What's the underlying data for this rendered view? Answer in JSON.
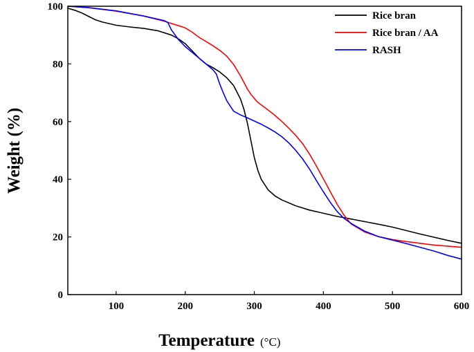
{
  "chart_data": {
    "type": "line",
    "title": "",
    "xlabel": "Temperature",
    "xlabel_unit": "(°C)",
    "ylabel": "Weight (%)",
    "xlim": [
      30,
      600
    ],
    "ylim": [
      0,
      100
    ],
    "xticks": [
      100,
      200,
      300,
      400,
      500,
      600
    ],
    "yticks": [
      0,
      20,
      40,
      60,
      80,
      100
    ],
    "grid": false,
    "legend_position": "top-right",
    "series": [
      {
        "name": "Rice bran",
        "color": "#000000",
        "x": [
          30,
          40,
          50,
          60,
          70,
          80,
          100,
          120,
          140,
          160,
          180,
          190,
          200,
          210,
          220,
          230,
          240,
          250,
          260,
          270,
          280,
          285,
          290,
          295,
          300,
          305,
          310,
          320,
          330,
          340,
          360,
          380,
          400,
          420,
          440,
          460,
          480,
          500,
          520,
          540,
          560,
          580,
          600
        ],
        "y": [
          99.3,
          98.6,
          97.7,
          96.5,
          95.3,
          94.5,
          93.4,
          92.8,
          92.3,
          91.5,
          90,
          88.7,
          87,
          84.5,
          82,
          80,
          78.7,
          77.2,
          75.2,
          72.5,
          67.8,
          64.2,
          59.5,
          53.5,
          47.5,
          43.2,
          40,
          36.3,
          34.2,
          32.8,
          30.8,
          29.3,
          28.2,
          27.1,
          26.2,
          25.3,
          24.4,
          23.4,
          22.2,
          21,
          19.9,
          18.8,
          17.8
        ]
      },
      {
        "name": "Rice bran / AA",
        "color": "#ff0000",
        "x": [
          30,
          60,
          100,
          140,
          170,
          200,
          210,
          220,
          230,
          240,
          250,
          260,
          270,
          280,
          290,
          295,
          300,
          305,
          310,
          320,
          330,
          340,
          350,
          360,
          370,
          380,
          390,
          400,
          410,
          420,
          430,
          440,
          460,
          480,
          500,
          520,
          540,
          560,
          580,
          600
        ],
        "y": [
          100,
          99.5,
          98.3,
          96.6,
          94.8,
          92.5,
          91,
          89.2,
          87.8,
          86.3,
          84.7,
          82.7,
          79.8,
          75.8,
          71.3,
          69.5,
          68,
          66.7,
          65.8,
          64,
          62.1,
          60,
          57.7,
          55.2,
          52.3,
          48.7,
          44.5,
          40.1,
          35.7,
          31.3,
          27.5,
          24.5,
          21.7,
          20.1,
          19.1,
          18.4,
          17.8,
          17.2,
          16.8,
          16.4
        ]
      },
      {
        "name": "RASH",
        "color": "#0000ff",
        "x": [
          30,
          60,
          100,
          140,
          170,
          175,
          180,
          190,
          200,
          210,
          220,
          230,
          240,
          245,
          250,
          255,
          260,
          270,
          280,
          290,
          300,
          310,
          320,
          330,
          340,
          350,
          360,
          370,
          380,
          390,
          400,
          410,
          420,
          430,
          440,
          460,
          480,
          500,
          520,
          540,
          560,
          580,
          600
        ],
        "y": [
          100,
          99.5,
          98.4,
          96.6,
          95,
          94.3,
          91.8,
          88.5,
          86,
          84,
          82,
          80,
          78,
          76.5,
          73,
          70,
          67.3,
          63.6,
          62.3,
          61.3,
          60.2,
          59.1,
          57.8,
          56.4,
          54.7,
          52.6,
          50,
          47,
          43.5,
          39.5,
          35.6,
          32,
          28.8,
          26.4,
          24.7,
          22,
          20.1,
          18.9,
          17.7,
          16.4,
          15.1,
          13.6,
          12.3
        ]
      }
    ]
  }
}
